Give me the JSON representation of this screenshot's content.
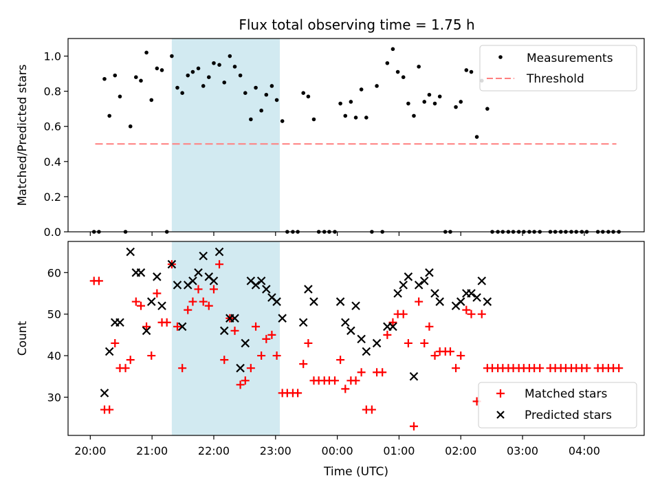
{
  "figure": {
    "title": "Flux total observing time = 1.75 h",
    "colors": {
      "measurement": "#000000",
      "threshold": "#ff7f7f",
      "matched": "#ff0000",
      "predicted": "#000000",
      "highlight": "#add8e6"
    }
  },
  "chart_data": [
    {
      "type": "scatter",
      "panel": "top",
      "xlabel": "",
      "ylabel": "Matched/Predicted stars",
      "x_unit": "hours since 20:00 UTC",
      "xlim": [
        -0.36,
        8.97
      ],
      "ylim": [
        0.0,
        1.1
      ],
      "yticks": [
        0.0,
        0.2,
        0.4,
        0.6,
        0.8,
        1.0
      ],
      "ytick_labels": [
        "0.0",
        "0.2",
        "0.4",
        "0.6",
        "0.8",
        "1.0"
      ],
      "highlight_span": [
        1.32,
        3.07
      ],
      "threshold": {
        "name": "Threshold",
        "y": 0.5,
        "x_range": [
          0.08,
          8.52
        ]
      },
      "legend": {
        "position": "top-right",
        "entries": [
          "Measurements",
          "Threshold"
        ]
      },
      "series": [
        {
          "name": "Measurements",
          "points": [
            [
              0.06,
              0
            ],
            [
              0.14,
              0
            ],
            [
              0.23,
              0.87
            ],
            [
              0.31,
              0.66
            ],
            [
              0.4,
              0.89
            ],
            [
              0.48,
              0.77
            ],
            [
              0.57,
              0
            ],
            [
              0.65,
              0.6
            ],
            [
              0.74,
              0.88
            ],
            [
              0.82,
              0.86
            ],
            [
              0.91,
              1.02
            ],
            [
              0.99,
              0.75
            ],
            [
              1.08,
              0.93
            ],
            [
              1.16,
              0.92
            ],
            [
              1.24,
              0
            ],
            [
              1.32,
              1.0
            ],
            [
              1.41,
              0.82
            ],
            [
              1.49,
              0.79
            ],
            [
              1.58,
              0.89
            ],
            [
              1.66,
              0.91
            ],
            [
              1.75,
              0.93
            ],
            [
              1.83,
              0.83
            ],
            [
              1.92,
              0.88
            ],
            [
              2.0,
              0.96
            ],
            [
              2.09,
              0.95
            ],
            [
              2.17,
              0.85
            ],
            [
              2.26,
              1.0
            ],
            [
              2.34,
              0.94
            ],
            [
              2.43,
              0.89
            ],
            [
              2.51,
              0.79
            ],
            [
              2.6,
              0.64
            ],
            [
              2.68,
              0.82
            ],
            [
              2.77,
              0.69
            ],
            [
              2.85,
              0.78
            ],
            [
              2.94,
              0.83
            ],
            [
              3.02,
              0.75
            ],
            [
              3.11,
              0.63
            ],
            [
              3.19,
              0
            ],
            [
              3.28,
              0
            ],
            [
              3.36,
              0
            ],
            [
              3.45,
              0.79
            ],
            [
              3.53,
              0.77
            ],
            [
              3.62,
              0.64
            ],
            [
              3.7,
              0
            ],
            [
              3.79,
              0
            ],
            [
              3.87,
              0
            ],
            [
              3.96,
              0
            ],
            [
              4.05,
              0.73
            ],
            [
              4.13,
              0.66
            ],
            [
              4.22,
              0.74
            ],
            [
              4.3,
              0.65
            ],
            [
              4.39,
              0.81
            ],
            [
              4.47,
              0.65
            ],
            [
              4.56,
              0
            ],
            [
              4.64,
              0.83
            ],
            [
              4.73,
              0
            ],
            [
              4.81,
              0.96
            ],
            [
              4.9,
              1.04
            ],
            [
              4.98,
              0.91
            ],
            [
              5.07,
              0.88
            ],
            [
              5.15,
              0.73
            ],
            [
              5.24,
              0.66
            ],
            [
              5.32,
              0.94
            ],
            [
              5.41,
              0.74
            ],
            [
              5.49,
              0.78
            ],
            [
              5.58,
              0.73
            ],
            [
              5.66,
              0.77
            ],
            [
              5.75,
              0
            ],
            [
              5.83,
              0
            ],
            [
              5.92,
              0.71
            ],
            [
              6.0,
              0.74
            ],
            [
              6.09,
              0.92
            ],
            [
              6.17,
              0.91
            ],
            [
              6.26,
              0.54
            ],
            [
              6.34,
              0.86
            ],
            [
              6.43,
              0.7
            ],
            [
              6.51,
              0
            ],
            [
              6.6,
              0
            ],
            [
              6.68,
              0
            ],
            [
              6.77,
              0
            ],
            [
              6.85,
              0
            ],
            [
              6.94,
              0
            ],
            [
              7.02,
              0
            ],
            [
              7.11,
              0
            ],
            [
              7.19,
              0
            ],
            [
              7.28,
              0
            ],
            [
              7.45,
              0
            ],
            [
              7.53,
              0
            ],
            [
              7.62,
              0
            ],
            [
              7.7,
              0
            ],
            [
              7.79,
              0
            ],
            [
              7.87,
              0
            ],
            [
              7.96,
              0
            ],
            [
              8.04,
              0
            ],
            [
              8.22,
              0
            ],
            [
              8.3,
              0
            ],
            [
              8.39,
              0
            ],
            [
              8.47,
              0
            ],
            [
              8.56,
              0
            ]
          ]
        }
      ]
    },
    {
      "type": "scatter",
      "panel": "bottom",
      "xlabel": "Time (UTC)",
      "ylabel": "Count",
      "x_unit": "hours since 20:00 UTC",
      "xlim": [
        -0.36,
        8.97
      ],
      "ylim": [
        20.8,
        67.5
      ],
      "yticks": [
        30,
        40,
        50,
        60
      ],
      "ytick_labels": [
        "30",
        "40",
        "50",
        "60"
      ],
      "xticks": [
        0,
        1,
        2,
        3,
        4,
        5,
        6,
        7,
        8
      ],
      "xtick_labels": [
        "20:00",
        "21:00",
        "22:00",
        "23:00",
        "00:00",
        "01:00",
        "02:00",
        "03:00",
        "04:00"
      ],
      "highlight_span": [
        1.32,
        3.07
      ],
      "legend": {
        "position": "bottom-right",
        "entries": [
          "Matched stars",
          "Predicted stars"
        ]
      },
      "series": [
        {
          "name": "Matched stars",
          "marker": "+",
          "points": [
            [
              0.06,
              58
            ],
            [
              0.14,
              58
            ],
            [
              0.23,
              27
            ],
            [
              0.31,
              27
            ],
            [
              0.4,
              43
            ],
            [
              0.48,
              37
            ],
            [
              0.57,
              37
            ],
            [
              0.65,
              39
            ],
            [
              0.74,
              53
            ],
            [
              0.82,
              52
            ],
            [
              0.91,
              47
            ],
            [
              0.99,
              40
            ],
            [
              1.08,
              55
            ],
            [
              1.16,
              48
            ],
            [
              1.24,
              48
            ],
            [
              1.32,
              62
            ],
            [
              1.41,
              47
            ],
            [
              1.49,
              37
            ],
            [
              1.58,
              51
            ],
            [
              1.66,
              53
            ],
            [
              1.75,
              56
            ],
            [
              1.83,
              53
            ],
            [
              1.92,
              52
            ],
            [
              2.0,
              56
            ],
            [
              2.09,
              62
            ],
            [
              2.17,
              39
            ],
            [
              2.26,
              49
            ],
            [
              2.34,
              46
            ],
            [
              2.43,
              33
            ],
            [
              2.51,
              34
            ],
            [
              2.6,
              37
            ],
            [
              2.68,
              47
            ],
            [
              2.77,
              40
            ],
            [
              2.85,
              44
            ],
            [
              2.94,
              45
            ],
            [
              3.02,
              40
            ],
            [
              3.11,
              31
            ],
            [
              3.19,
              31
            ],
            [
              3.28,
              31
            ],
            [
              3.36,
              31
            ],
            [
              3.45,
              38
            ],
            [
              3.53,
              43
            ],
            [
              3.62,
              34
            ],
            [
              3.7,
              34
            ],
            [
              3.79,
              34
            ],
            [
              3.87,
              34
            ],
            [
              3.96,
              34
            ],
            [
              4.05,
              39
            ],
            [
              4.13,
              32
            ],
            [
              4.22,
              34
            ],
            [
              4.3,
              34
            ],
            [
              4.39,
              36
            ],
            [
              4.47,
              27
            ],
            [
              4.56,
              27
            ],
            [
              4.64,
              36
            ],
            [
              4.73,
              36
            ],
            [
              4.81,
              45
            ],
            [
              4.9,
              48
            ],
            [
              4.98,
              50
            ],
            [
              5.07,
              50
            ],
            [
              5.15,
              43
            ],
            [
              5.24,
              23
            ],
            [
              5.32,
              53
            ],
            [
              5.41,
              43
            ],
            [
              5.49,
              47
            ],
            [
              5.58,
              40
            ],
            [
              5.66,
              41
            ],
            [
              5.75,
              41
            ],
            [
              5.83,
              41
            ],
            [
              5.92,
              37
            ],
            [
              6.0,
              40
            ],
            [
              6.09,
              51
            ],
            [
              6.17,
              50
            ],
            [
              6.26,
              29
            ],
            [
              6.34,
              50
            ],
            [
              6.43,
              37
            ],
            [
              6.51,
              37
            ],
            [
              6.6,
              37
            ],
            [
              6.68,
              37
            ],
            [
              6.77,
              37
            ],
            [
              6.85,
              37
            ],
            [
              6.94,
              37
            ],
            [
              7.02,
              37
            ],
            [
              7.11,
              37
            ],
            [
              7.19,
              37
            ],
            [
              7.28,
              37
            ],
            [
              7.45,
              37
            ],
            [
              7.53,
              37
            ],
            [
              7.62,
              37
            ],
            [
              7.7,
              37
            ],
            [
              7.79,
              37
            ],
            [
              7.87,
              37
            ],
            [
              7.96,
              37
            ],
            [
              8.04,
              37
            ],
            [
              8.22,
              37
            ],
            [
              8.3,
              37
            ],
            [
              8.39,
              37
            ],
            [
              8.47,
              37
            ],
            [
              8.56,
              37
            ]
          ]
        },
        {
          "name": "Predicted stars",
          "marker": "x",
          "points": [
            [
              0.23,
              31
            ],
            [
              0.31,
              41
            ],
            [
              0.4,
              48
            ],
            [
              0.48,
              48
            ],
            [
              0.65,
              65
            ],
            [
              0.74,
              60
            ],
            [
              0.82,
              60
            ],
            [
              0.91,
              46
            ],
            [
              0.99,
              53
            ],
            [
              1.08,
              59
            ],
            [
              1.16,
              52
            ],
            [
              1.32,
              62
            ],
            [
              1.41,
              57
            ],
            [
              1.49,
              47
            ],
            [
              1.58,
              57
            ],
            [
              1.66,
              58
            ],
            [
              1.75,
              60
            ],
            [
              1.83,
              64
            ],
            [
              1.92,
              59
            ],
            [
              2.0,
              58
            ],
            [
              2.09,
              65
            ],
            [
              2.17,
              46
            ],
            [
              2.26,
              49
            ],
            [
              2.34,
              49
            ],
            [
              2.43,
              37
            ],
            [
              2.51,
              43
            ],
            [
              2.6,
              58
            ],
            [
              2.68,
              57
            ],
            [
              2.77,
              58
            ],
            [
              2.85,
              56
            ],
            [
              2.94,
              54
            ],
            [
              3.02,
              53
            ],
            [
              3.11,
              49
            ],
            [
              3.45,
              48
            ],
            [
              3.53,
              56
            ],
            [
              3.62,
              53
            ],
            [
              4.05,
              53
            ],
            [
              4.13,
              48
            ],
            [
              4.22,
              46
            ],
            [
              4.3,
              52
            ],
            [
              4.39,
              44
            ],
            [
              4.47,
              41
            ],
            [
              4.64,
              43
            ],
            [
              4.81,
              47
            ],
            [
              4.9,
              47
            ],
            [
              4.98,
              55
            ],
            [
              5.07,
              57
            ],
            [
              5.15,
              59
            ],
            [
              5.24,
              35
            ],
            [
              5.32,
              57
            ],
            [
              5.41,
              58
            ],
            [
              5.49,
              60
            ],
            [
              5.58,
              55
            ],
            [
              5.66,
              53
            ],
            [
              5.92,
              52
            ],
            [
              6.0,
              53
            ],
            [
              6.09,
              55
            ],
            [
              6.17,
              55
            ],
            [
              6.26,
              54
            ],
            [
              6.34,
              58
            ],
            [
              6.43,
              53
            ]
          ]
        }
      ]
    }
  ]
}
